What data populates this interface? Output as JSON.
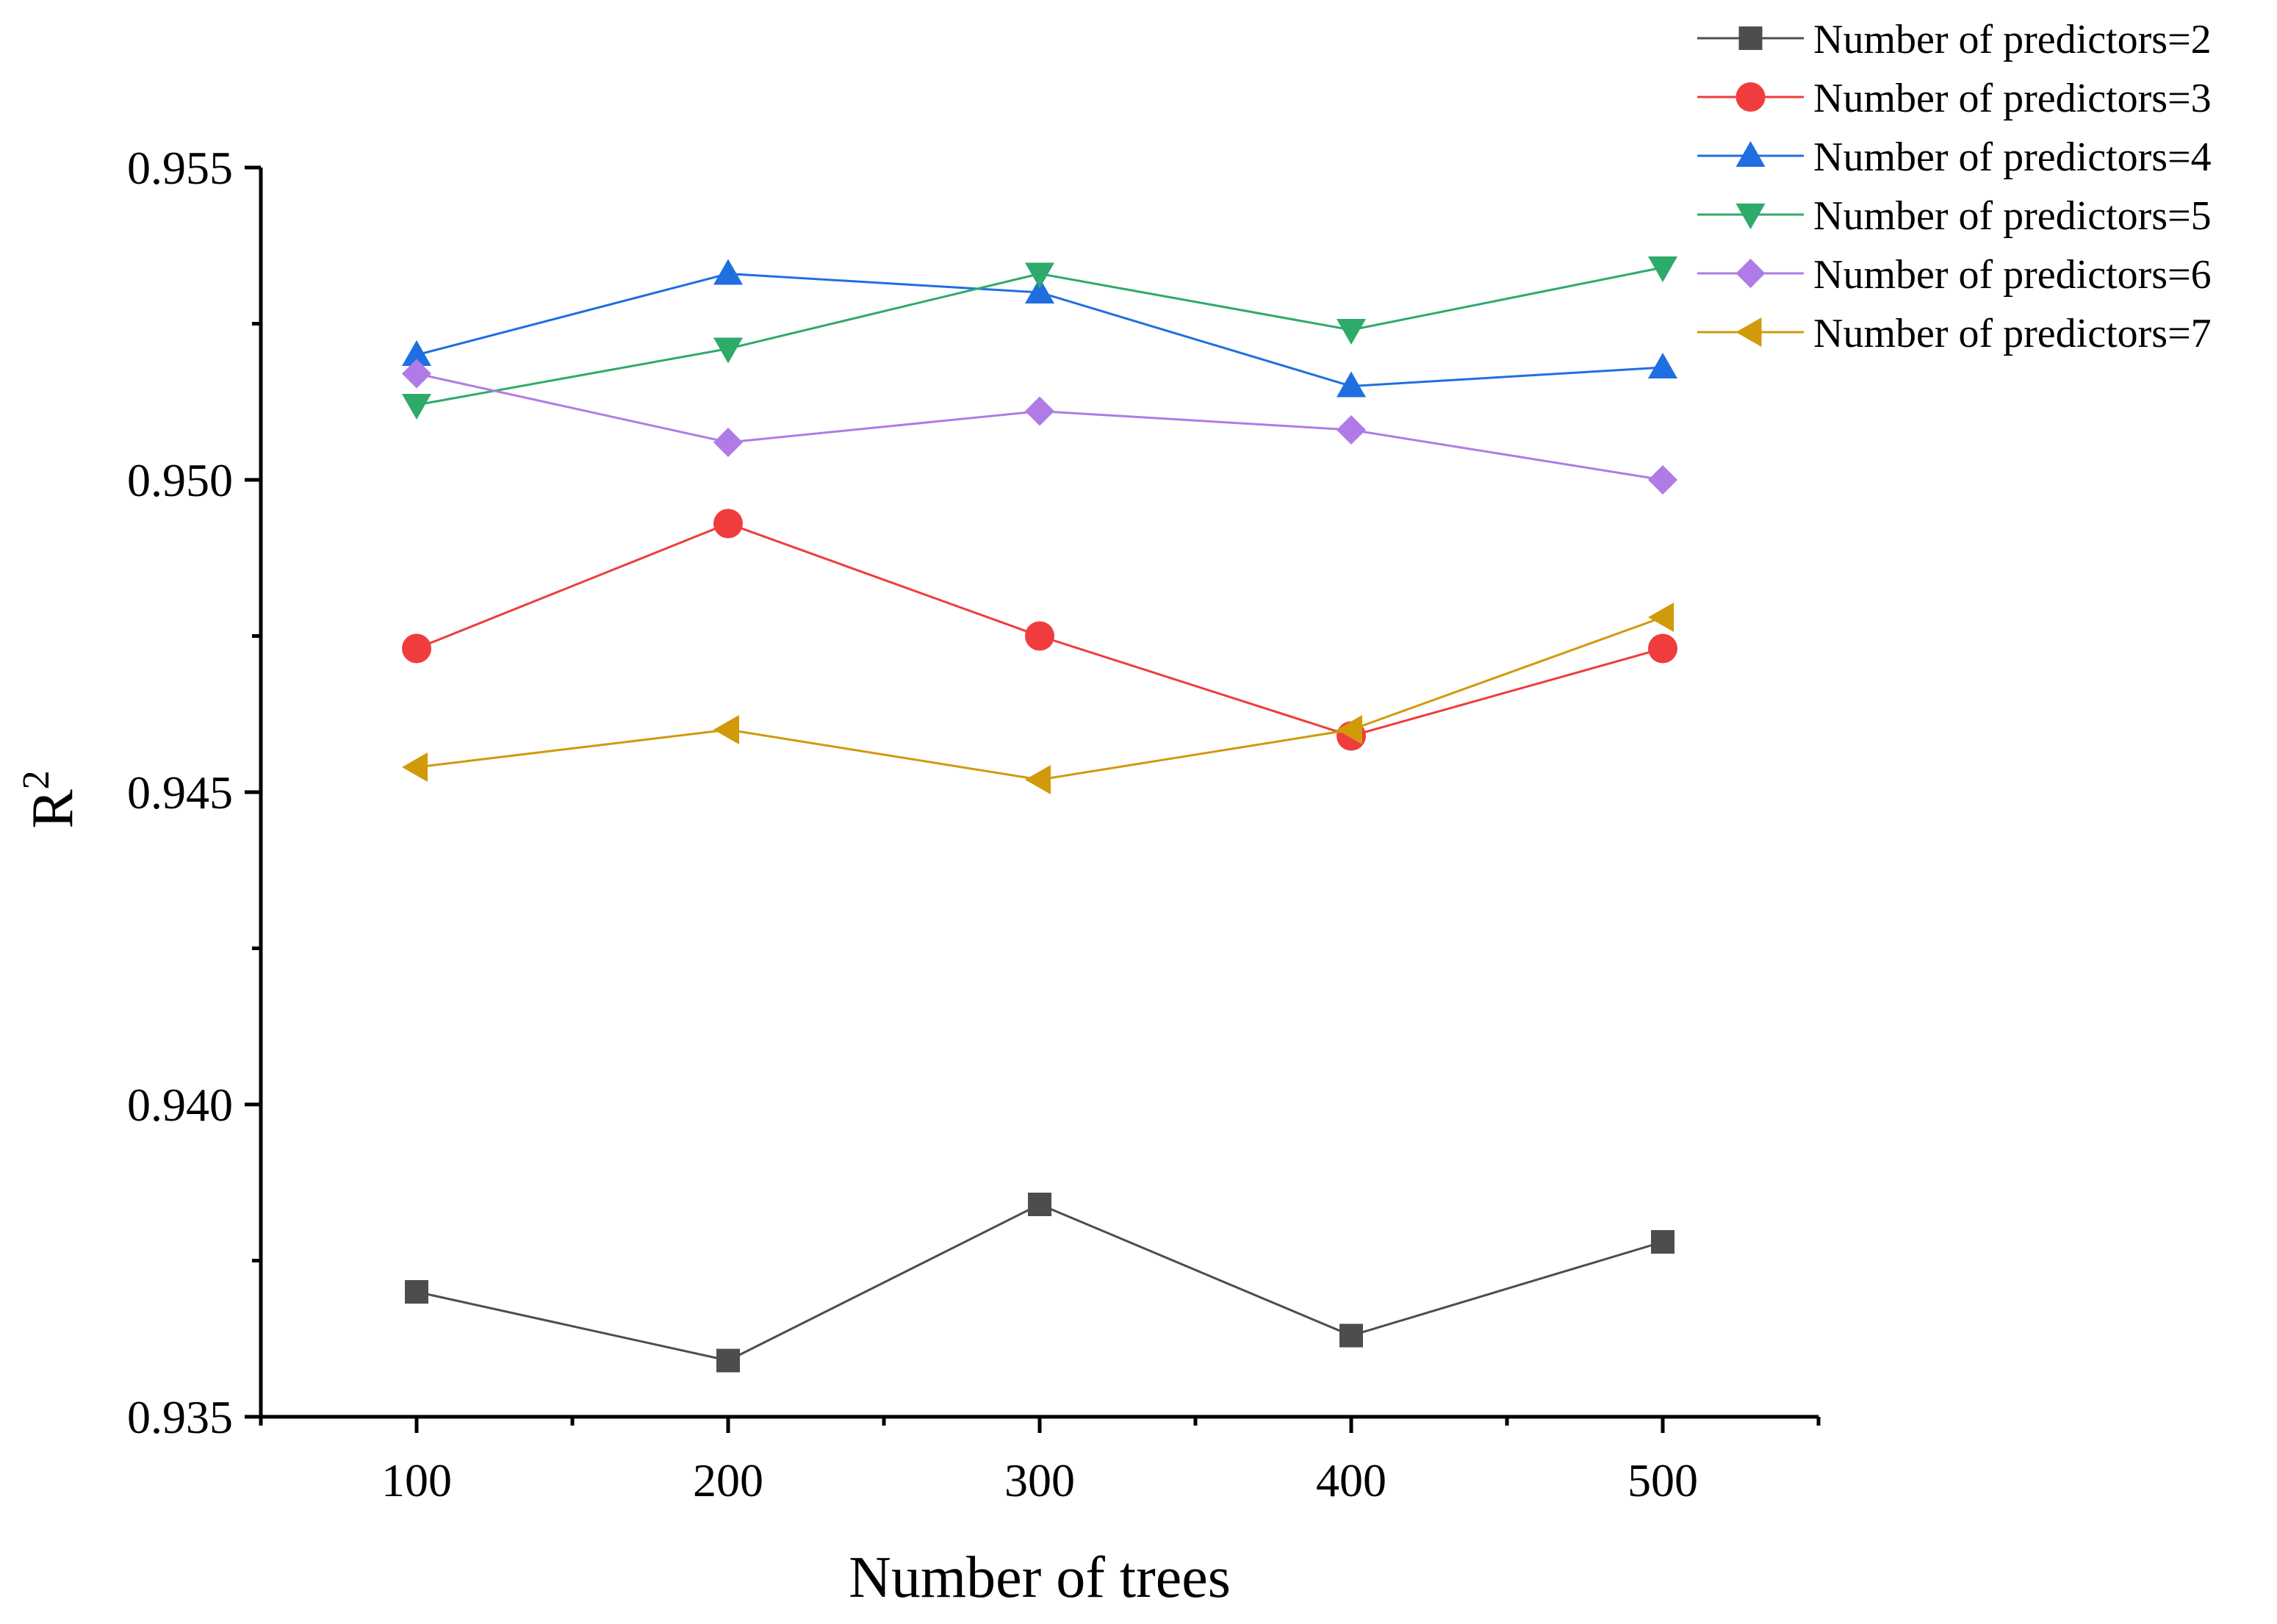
{
  "chart_data": {
    "type": "line",
    "title": "",
    "xlabel": "Number of trees",
    "ylabel": "R",
    "ylabel_superscript": "2",
    "x": [
      100,
      200,
      300,
      400,
      500
    ],
    "x_tick_labels": [
      "100",
      "200",
      "300",
      "400",
      "500"
    ],
    "xlim": [
      50,
      550
    ],
    "ylim": [
      0.935,
      0.955
    ],
    "y_ticks": [
      0.935,
      0.94,
      0.945,
      0.95,
      0.955
    ],
    "y_tick_labels": [
      "0.935",
      "0.940",
      "0.945",
      "0.950",
      "0.955"
    ],
    "grid": false,
    "legend_position": "top-right",
    "series": [
      {
        "name": "Number of predictors=2",
        "color": "#4d4d4d",
        "marker": "square",
        "values": [
          0.937,
          0.9359,
          0.9384,
          0.9363,
          0.9378
        ]
      },
      {
        "name": "Number of predictors=3",
        "color": "#f03c3c",
        "marker": "circle",
        "values": [
          0.9473,
          0.9493,
          0.9475,
          0.9459,
          0.9473
        ]
      },
      {
        "name": "Number of predictors=4",
        "color": "#1f6fe0",
        "marker": "triangle-up",
        "values": [
          0.952,
          0.9533,
          0.953,
          0.9515,
          0.9518
        ]
      },
      {
        "name": "Number of predictors=5",
        "color": "#2eaa6a",
        "marker": "triangle-down",
        "values": [
          0.9512,
          0.9521,
          0.9533,
          0.9524,
          0.9534
        ]
      },
      {
        "name": "Number of predictors=6",
        "color": "#b07be6",
        "marker": "diamond",
        "values": [
          0.9517,
          0.9506,
          0.9511,
          0.9508,
          0.95
        ]
      },
      {
        "name": "Number of predictors=7",
        "color": "#d09a0a",
        "marker": "triangle-left",
        "values": [
          0.9454,
          0.946,
          0.9452,
          0.946,
          0.9478
        ]
      }
    ]
  }
}
